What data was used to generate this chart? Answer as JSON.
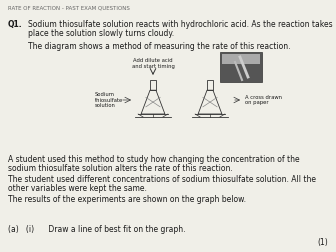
{
  "header": "RATE OF REACTION - PAST EXAM QUESTIONS",
  "q1_bold": "Q1.",
  "q1_line1": "Sodium thiosulfate solution reacts with hydrochloric acid. As the reaction takes",
  "q1_line2": "place the solution slowly turns cloudy.",
  "para1": "The diagram shows a method of measuring the rate of this reaction.",
  "label_add": "Add dilute acid\nand start timing",
  "label_sodium": "Sodium\nthiosulfate\nsolution",
  "label_cross": "A cross drawn\non paper",
  "para2_line1": "A student used this method to study how changing the concentration of the",
  "para2_line2": "sodium thiosulfate solution alters the rate of this reaction.",
  "para3_line1": "The student used different concentrations of sodium thiosulfate solution. All the",
  "para3_line2": "other variables were kept the same.",
  "para4": "The results of the experiments are shown on the graph below.",
  "qa_label": "(a)   (i)      Draw a line of best fit on the graph.",
  "marks": "(1)",
  "bg_color": "#f0efe8",
  "text_color": "#1a1a1a",
  "header_color": "#666666",
  "diagram_color": "#333333"
}
